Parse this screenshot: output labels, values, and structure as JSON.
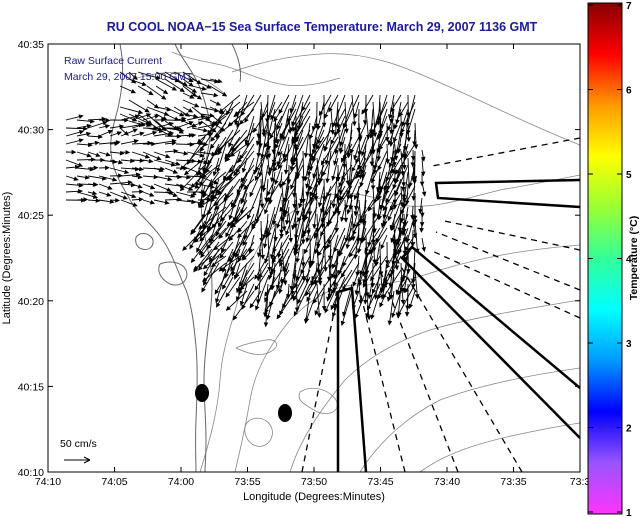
{
  "title": "RU COOL  NOAA−15  Sea Surface Temperature:  March 29, 2007 1136 GMT",
  "overlay": {
    "line1": "Raw Surface Current",
    "line2": "March 29, 2007 15:00 GMT"
  },
  "scale_label": "50 cm/s",
  "axes": {
    "xlabel": "Longitude (Degrees:Minutes)",
    "ylabel": "Latitude (Degrees:Minutes)",
    "xticks": [
      "74:10",
      "74:05",
      "74:00",
      "73:55",
      "73:50",
      "73:45",
      "73:40",
      "73:35",
      "73:3"
    ],
    "yticks": [
      "40:35",
      "40:30",
      "40:25",
      "40:20",
      "40:15",
      "40:10"
    ]
  },
  "colorbar": {
    "label": "Temperature (°C)",
    "ticks": [
      "7",
      "6",
      "5",
      "4",
      "3",
      "2",
      "1"
    ],
    "min": 1,
    "max": 7,
    "colors": [
      "#ff33ff",
      "#9955ff",
      "#0000ff",
      "#0099ff",
      "#00ffff",
      "#33ff99",
      "#99ff33",
      "#ffff00",
      "#ff9900",
      "#ff0000",
      "#880000"
    ]
  }
}
